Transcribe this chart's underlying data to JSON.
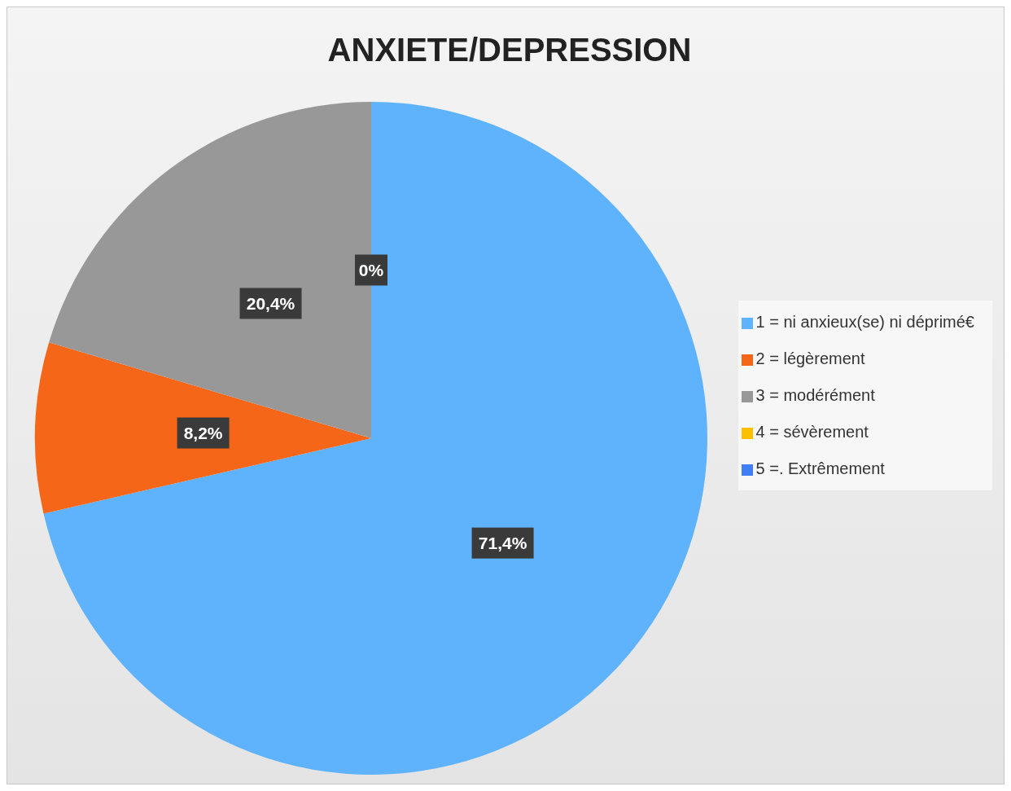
{
  "chart_data": {
    "type": "pie",
    "title": "ANXIETE/DEPRESSION",
    "categories": [
      "1 = ni anxieux(se) ni déprimé€",
      "2 = légèrement",
      "3 = modérément",
      "4 = sévèrement",
      "5 =. Extrêmement"
    ],
    "values": [
      71.4,
      8.2,
      20.4,
      0,
      0
    ],
    "colors": [
      "#5fb3fc",
      "#f56618",
      "#989898",
      "#fcc000",
      "#3f7ef5"
    ],
    "value_labels": [
      "71,4%",
      "8,2%",
      "20,4%",
      "0%",
      null
    ],
    "legend": "right"
  }
}
